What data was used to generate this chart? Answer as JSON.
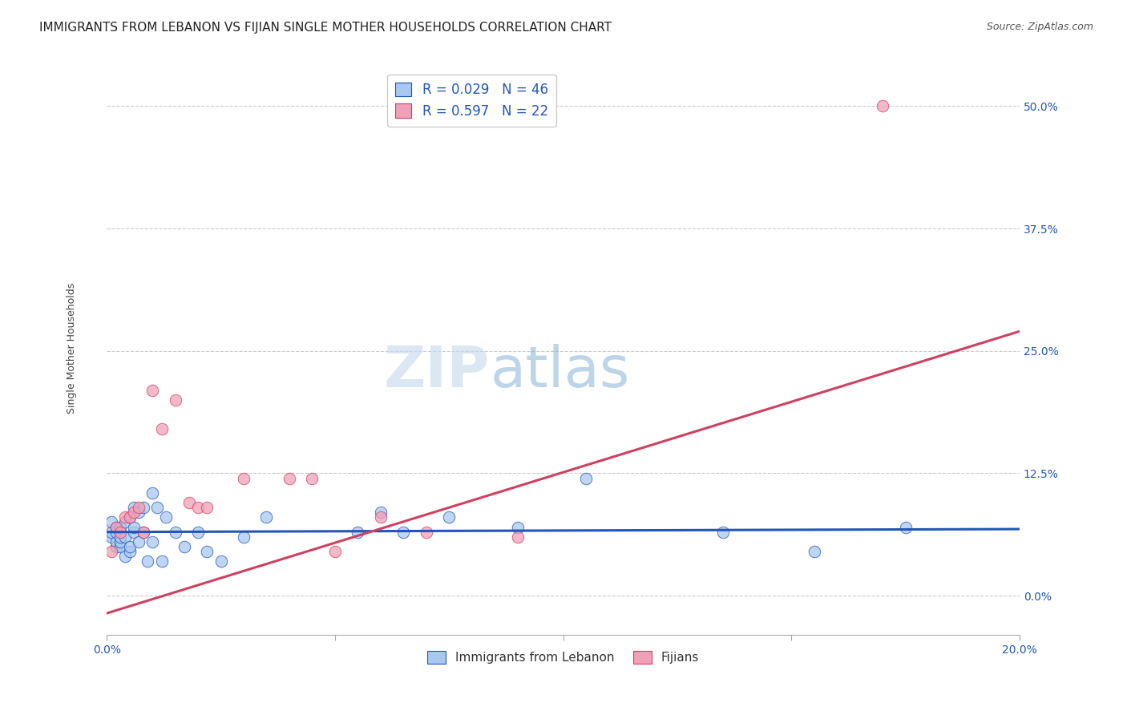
{
  "title": "IMMIGRANTS FROM LEBANON VS FIJIAN SINGLE MOTHER HOUSEHOLDS CORRELATION CHART",
  "source": "Source: ZipAtlas.com",
  "ylabel": "Single Mother Households",
  "xmin": 0.0,
  "xmax": 0.2,
  "ymin": -0.04,
  "ymax": 0.545,
  "yticks": [
    0.0,
    0.125,
    0.25,
    0.375,
    0.5
  ],
  "ytick_labels": [
    "0.0%",
    "12.5%",
    "25.0%",
    "37.5%",
    "50.0%"
  ],
  "xticks": [
    0.0,
    0.05,
    0.1,
    0.15,
    0.2
  ],
  "xtick_labels": [
    "0.0%",
    "",
    "",
    "",
    "20.0%"
  ],
  "legend_label1": "R = 0.029   N = 46",
  "legend_label2": "R = 0.597   N = 22",
  "legend_bottom_label1": "Immigrants from Lebanon",
  "legend_bottom_label2": "Fijians",
  "color_blue": "#a8c8f0",
  "color_pink": "#f0a0b8",
  "line_color_blue": "#2255bb",
  "line_color_pink": "#d04060",
  "background": "#ffffff",
  "grid_color": "#cccccc",
  "blue_scatter_x": [
    0.001,
    0.001,
    0.001,
    0.002,
    0.002,
    0.002,
    0.002,
    0.003,
    0.003,
    0.003,
    0.003,
    0.004,
    0.004,
    0.004,
    0.005,
    0.005,
    0.005,
    0.006,
    0.006,
    0.006,
    0.007,
    0.007,
    0.008,
    0.008,
    0.009,
    0.01,
    0.01,
    0.011,
    0.012,
    0.013,
    0.015,
    0.017,
    0.02,
    0.022,
    0.025,
    0.03,
    0.035,
    0.055,
    0.06,
    0.065,
    0.075,
    0.09,
    0.105,
    0.135,
    0.155,
    0.175
  ],
  "blue_scatter_y": [
    0.06,
    0.065,
    0.075,
    0.05,
    0.055,
    0.065,
    0.07,
    0.05,
    0.055,
    0.06,
    0.07,
    0.04,
    0.06,
    0.075,
    0.045,
    0.05,
    0.08,
    0.065,
    0.07,
    0.09,
    0.055,
    0.085,
    0.065,
    0.09,
    0.035,
    0.055,
    0.105,
    0.09,
    0.035,
    0.08,
    0.065,
    0.05,
    0.065,
    0.045,
    0.035,
    0.06,
    0.08,
    0.065,
    0.085,
    0.065,
    0.08,
    0.07,
    0.12,
    0.065,
    0.045,
    0.07
  ],
  "pink_scatter_x": [
    0.001,
    0.002,
    0.003,
    0.004,
    0.005,
    0.006,
    0.007,
    0.008,
    0.01,
    0.012,
    0.015,
    0.018,
    0.02,
    0.022,
    0.03,
    0.04,
    0.045,
    0.05,
    0.06,
    0.07,
    0.09,
    0.17
  ],
  "pink_scatter_y": [
    0.045,
    0.07,
    0.065,
    0.08,
    0.08,
    0.085,
    0.09,
    0.065,
    0.21,
    0.17,
    0.2,
    0.095,
    0.09,
    0.09,
    0.12,
    0.12,
    0.12,
    0.045,
    0.08,
    0.065,
    0.06,
    0.5
  ],
  "pink_line_x0": 0.0,
  "pink_line_y0": -0.018,
  "pink_line_x1": 0.2,
  "pink_line_y1": 0.27,
  "blue_line_x0": 0.0,
  "blue_line_y0": 0.065,
  "blue_line_x1": 0.2,
  "blue_line_y1": 0.068,
  "watermark_zip": "ZIP",
  "watermark_atlas": "atlas",
  "title_fontsize": 11,
  "axis_label_fontsize": 9,
  "tick_fontsize": 10,
  "source_fontsize": 9
}
